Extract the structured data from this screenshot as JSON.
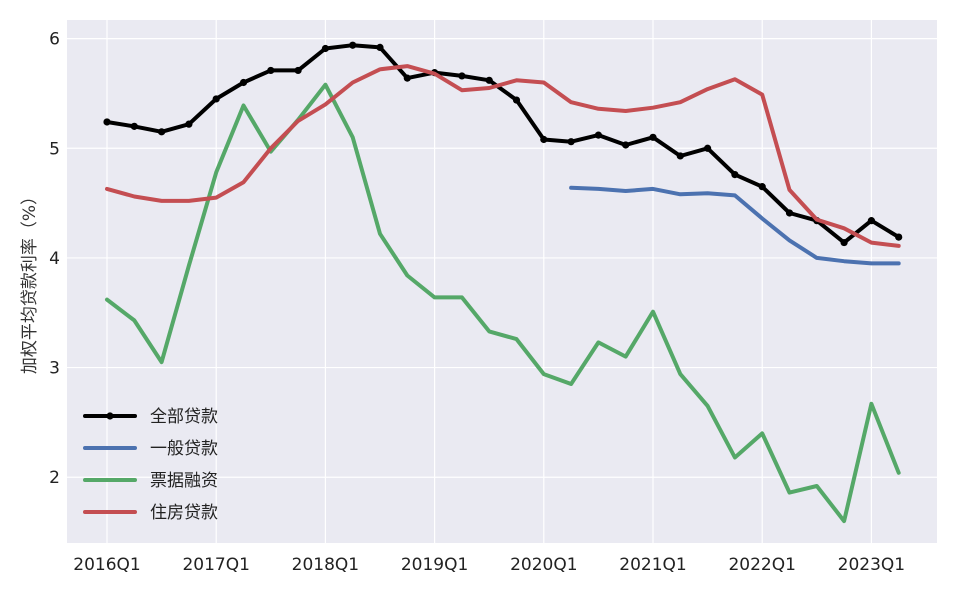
{
  "chart_data": {
    "type": "line",
    "ylabel": "加权平均贷款利率（%）",
    "xlabel": "",
    "x": [
      "2016Q1",
      "2016Q2",
      "2016Q3",
      "2016Q4",
      "2017Q1",
      "2017Q2",
      "2017Q3",
      "2017Q4",
      "2018Q1",
      "2018Q2",
      "2018Q3",
      "2018Q4",
      "2019Q1",
      "2019Q2",
      "2019Q3",
      "2019Q4",
      "2020Q1",
      "2020Q2",
      "2020Q3",
      "2020Q4",
      "2021Q1",
      "2021Q2",
      "2021Q3",
      "2021Q4",
      "2022Q1",
      "2022Q2",
      "2022Q3",
      "2022Q4",
      "2023Q1",
      "2023Q2"
    ],
    "xticks": [
      "2016Q1",
      "2017Q1",
      "2018Q1",
      "2019Q1",
      "2020Q1",
      "2021Q1",
      "2022Q1",
      "2023Q1"
    ],
    "ylim": [
      1.4,
      6.17
    ],
    "yticks": [
      "2",
      "3",
      "4",
      "5",
      "6"
    ],
    "grid": true,
    "legend_position": "lower-left",
    "series": [
      {
        "name": "全部贷款",
        "color": "#000000",
        "markers": true,
        "values": [
          5.24,
          5.2,
          5.15,
          5.22,
          5.45,
          5.6,
          5.71,
          5.71,
          5.91,
          5.94,
          5.92,
          5.64,
          5.69,
          5.66,
          5.62,
          5.44,
          5.08,
          5.06,
          5.12,
          5.03,
          5.1,
          4.93,
          5.0,
          4.76,
          4.65,
          4.41,
          4.34,
          4.14,
          4.34,
          4.19
        ]
      },
      {
        "name": "一般贷款",
        "color": "#4C72B0",
        "markers": false,
        "values": [
          null,
          null,
          null,
          null,
          null,
          null,
          null,
          null,
          null,
          null,
          null,
          null,
          null,
          null,
          null,
          null,
          null,
          4.64,
          4.63,
          4.61,
          4.63,
          4.58,
          4.59,
          4.57,
          4.36,
          4.16,
          4.0,
          3.97,
          3.95,
          3.95
        ]
      },
      {
        "name": "票据融资",
        "color": "#55A868",
        "markers": false,
        "values": [
          3.62,
          3.43,
          3.05,
          3.93,
          4.78,
          5.39,
          4.97,
          5.26,
          5.58,
          5.1,
          4.22,
          3.84,
          3.64,
          3.64,
          3.33,
          3.26,
          2.94,
          2.85,
          3.23,
          3.1,
          3.51,
          2.94,
          2.65,
          2.18,
          2.4,
          1.86,
          1.92,
          1.6,
          2.67,
          2.04
        ]
      },
      {
        "name": "住房贷款",
        "color": "#C44E52",
        "markers": false,
        "values": [
          4.63,
          4.56,
          4.52,
          4.52,
          4.55,
          4.69,
          5.0,
          5.25,
          5.4,
          5.6,
          5.72,
          5.75,
          5.68,
          5.53,
          5.55,
          5.62,
          5.6,
          5.42,
          5.36,
          5.34,
          5.37,
          5.42,
          5.54,
          5.63,
          5.49,
          4.62,
          4.35,
          4.27,
          4.14,
          4.11
        ]
      }
    ]
  }
}
